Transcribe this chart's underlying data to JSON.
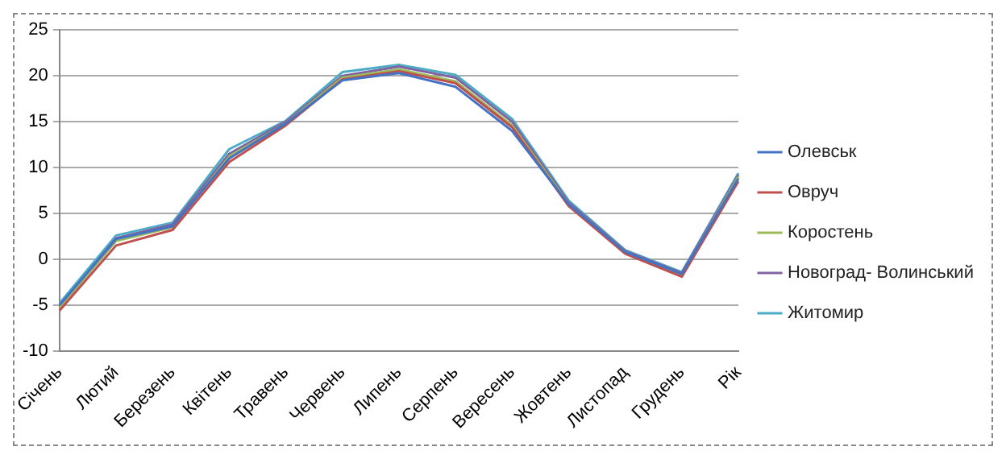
{
  "chart_data": {
    "type": "line",
    "categories": [
      "Січень",
      "Лютий",
      "Березень",
      "Квітень",
      "Травень",
      "Червень",
      "Липень",
      "Серпень",
      "Вересень",
      "Жовтень",
      "Листопад",
      "Грудень",
      "Рік"
    ],
    "series": [
      {
        "name": "Олевськ",
        "color": "#4472c4",
        "values": [
          -5.0,
          2.2,
          3.6,
          11.0,
          14.8,
          19.5,
          20.3,
          18.8,
          14.0,
          6.0,
          0.8,
          -1.6,
          8.8
        ]
      },
      {
        "name": "Овруч",
        "color": "#c0504d",
        "values": [
          -5.6,
          1.5,
          3.2,
          10.6,
          14.6,
          19.6,
          20.5,
          19.2,
          14.4,
          5.8,
          0.6,
          -1.9,
          8.5
        ]
      },
      {
        "name": "Коростень",
        "color": "#9bbb59",
        "values": [
          -5.3,
          2.0,
          3.5,
          11.2,
          14.8,
          19.8,
          20.7,
          19.4,
          14.6,
          6.0,
          0.8,
          -1.7,
          9.0
        ]
      },
      {
        "name": "Новоград- Волинський",
        "color": "#8064a2",
        "values": [
          -5.2,
          2.3,
          3.8,
          11.5,
          15.0,
          20.0,
          21.0,
          19.8,
          15.0,
          6.2,
          0.9,
          -1.5,
          9.2
        ]
      },
      {
        "name": "Житомир",
        "color": "#4bacc6",
        "values": [
          -4.8,
          2.6,
          4.0,
          12.0,
          15.1,
          20.4,
          21.2,
          20.1,
          15.3,
          6.4,
          1.0,
          -1.4,
          9.4
        ]
      }
    ],
    "ylim": [
      -10,
      25
    ],
    "yticks": [
      -10,
      -5,
      0,
      5,
      10,
      15,
      20,
      25
    ],
    "grid": "y",
    "legend": "right",
    "marker": "none",
    "line_style": "solid"
  }
}
